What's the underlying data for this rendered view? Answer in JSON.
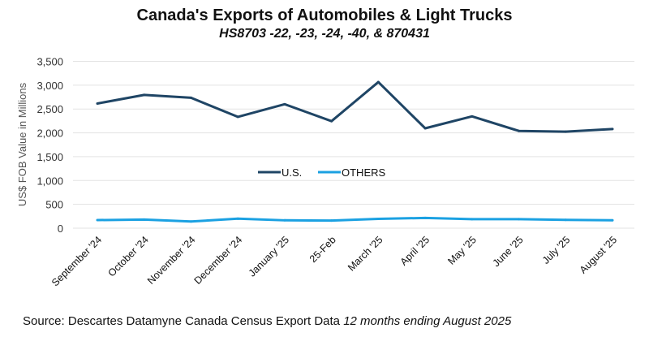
{
  "chart_data": {
    "type": "line",
    "title": "Canada's Exports of Automobiles & Light Trucks",
    "subtitle": "HS8703 -22, -23, -24, -40, & 870431",
    "ylabel": "US$ FOB Value in Millions",
    "xlabel": "",
    "ylim": [
      0,
      3500
    ],
    "yticks": [
      0,
      500,
      1000,
      1500,
      2000,
      2500,
      3000,
      3500
    ],
    "ytick_labels": [
      "0",
      "500",
      "1,000",
      "1,500",
      "2,000",
      "2,500",
      "3,000",
      "3,500"
    ],
    "grid": true,
    "legend_position": "center",
    "categories": [
      "September '24",
      "October '24",
      "November '24",
      "December '24",
      "January '25",
      "25-Feb",
      "March '25",
      "April '25",
      "May '25",
      "June '25",
      "July '25",
      "August '25"
    ],
    "series": [
      {
        "name": "U.S.",
        "color": "#1f4565",
        "values": [
          2615,
          2795,
          2735,
          2335,
          2600,
          2245,
          3065,
          2095,
          2345,
          2040,
          2025,
          2080
        ]
      },
      {
        "name": "OTHERS",
        "color": "#1ba1e2",
        "values": [
          170,
          180,
          140,
          200,
          165,
          160,
          195,
          215,
          190,
          190,
          175,
          165
        ]
      }
    ]
  },
  "source": {
    "text": "Source: Descartes Datamyne Canada Census Export Data ",
    "italic": "12 months ending August 2025"
  }
}
